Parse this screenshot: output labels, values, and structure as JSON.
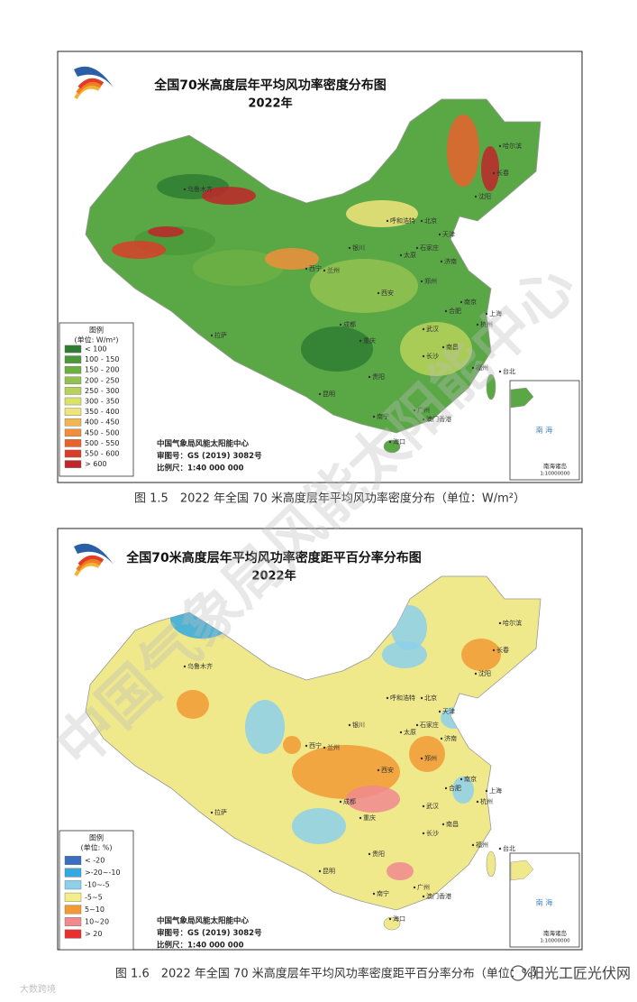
{
  "figures": [
    {
      "title": "全国70米高度层年平均风功率密度分布图",
      "year": "2022年",
      "legend": {
        "title": "图例",
        "unit": "(单位: W/m²)",
        "items": [
          {
            "label": "< 100",
            "color": "#2f7d32"
          },
          {
            "label": "100 - 150",
            "color": "#4a9a3a"
          },
          {
            "label": "150 - 200",
            "color": "#6cb044"
          },
          {
            "label": "200 - 250",
            "color": "#93c250"
          },
          {
            "label": "250 - 300",
            "color": "#b7d25a"
          },
          {
            "label": "300 - 350",
            "color": "#dbe269"
          },
          {
            "label": "350 - 400",
            "color": "#f1e47a"
          },
          {
            "label": "400 - 450",
            "color": "#f2b64f"
          },
          {
            "label": "450 - 500",
            "color": "#ef8f3b"
          },
          {
            "label": "500 - 550",
            "color": "#e8622e"
          },
          {
            "label": "550 - 600",
            "color": "#d93d2a"
          },
          {
            "label": "> 600",
            "color": "#c0262a"
          }
        ]
      },
      "credits": [
        "中国气象局风能太阳能中心",
        "审图号：GS (2019) 3082号",
        "比例尺：1:40 000 000"
      ],
      "inset": {
        "sea": "南 海",
        "label": "南海诸岛",
        "scale": "1:10000000"
      },
      "caption": "图 1.5　2022 年全国 70 米高度层年平均风功率密度分布（单位：W/m²）"
    },
    {
      "title": "全国70米高度层年平均风功率密度距平百分率分布图",
      "year": "2022年",
      "legend": {
        "title": "图例",
        "unit": "(单位: %)",
        "items": [
          {
            "label": "< -20",
            "color": "#3a6fc0"
          },
          {
            "label": ">-20~-10",
            "color": "#33a9e0"
          },
          {
            "label": "-10~-5",
            "color": "#8cd0ea"
          },
          {
            "label": "-5~5",
            "color": "#f2ee8a"
          },
          {
            "label": "5~10",
            "color": "#f29a34"
          },
          {
            "label": "10~20",
            "color": "#f08a8f"
          },
          {
            "label": "> 20",
            "color": "#e8302f"
          }
        ]
      },
      "credits": [
        "中国气象局风能太阳能中心",
        "审图号：GS (2019) 3082号",
        "比例尺：1:40 000 000"
      ],
      "inset": {
        "sea": "南 海",
        "label": "南海诸岛",
        "scale": "1:10000000"
      },
      "caption": "图 1.6　2022 年全国 70 米高度层年平均风功率密度距平百分率分布（单位：%）"
    }
  ],
  "cities": [
    "乌鲁木齐",
    "哈尔滨",
    "长春",
    "沈阳",
    "呼和浩特",
    "北京",
    "天津",
    "石家庄",
    "太原",
    "济南",
    "银川",
    "兰州",
    "西宁",
    "郑州",
    "西安",
    "南京",
    "合肥",
    "上海",
    "武汉",
    "成都",
    "重庆",
    "长沙",
    "南昌",
    "杭州",
    "福州",
    "台北",
    "贵阳",
    "昆明",
    "拉萨",
    "南宁",
    "广州",
    "澳门香港",
    "海口"
  ],
  "watermark": "中国气象局风能太阳能中心",
  "footer": {
    "left": "大数跨境",
    "right": "阳光工匠光伏网"
  }
}
